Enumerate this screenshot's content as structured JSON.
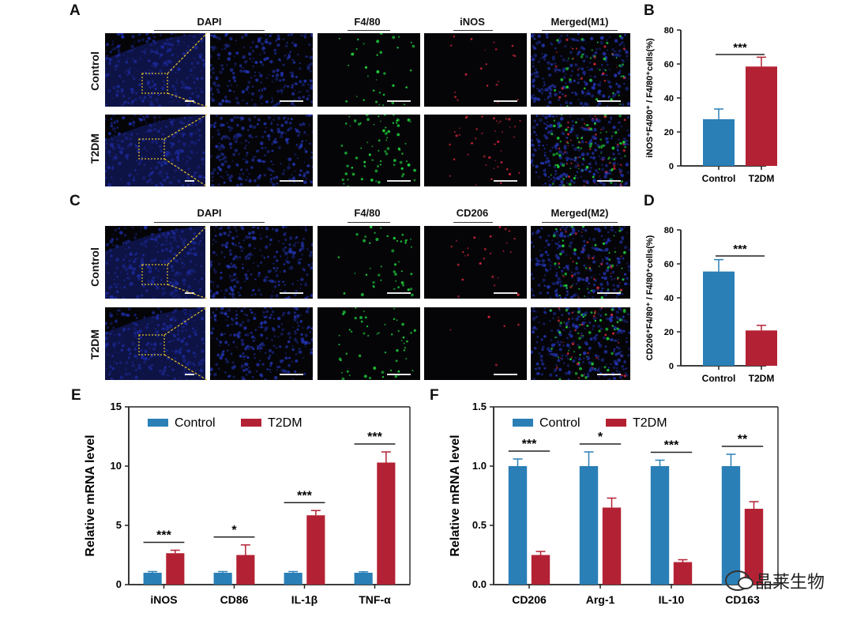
{
  "panels": {
    "A": {
      "letter": "A",
      "columns": [
        "DAPI",
        "F4/80",
        "iNOS",
        "Merged(M1)"
      ],
      "rows": [
        "Control",
        "T2DM"
      ]
    },
    "B": {
      "letter": "B"
    },
    "C": {
      "letter": "C",
      "columns": [
        "DAPI",
        "F4/80",
        "CD206",
        "Merged(M2)"
      ],
      "rows": [
        "Control",
        "T2DM"
      ]
    },
    "D": {
      "letter": "D"
    },
    "E": {
      "letter": "E"
    },
    "F": {
      "letter": "F"
    }
  },
  "colors": {
    "control": "#2a7fb6",
    "t2dm": "#b32234",
    "dapi": "#1a2a9a",
    "f480": "#1fcc3a",
    "red": "#d8283a"
  },
  "watermark": {
    "text": "晶莱生物",
    "icon": "wechat-icon"
  },
  "chart_data": [
    {
      "id": "B",
      "type": "bar",
      "categories": [
        "Control",
        "T2DM"
      ],
      "values": [
        27.5,
        58.5
      ],
      "errors": [
        6,
        5.5
      ],
      "ylabel": "iNOS⁺F4/80⁺ / F4/80⁺cells(%)",
      "ylim": [
        0,
        80
      ],
      "yticks": [
        0,
        20,
        40,
        60,
        80
      ],
      "significance": "***"
    },
    {
      "id": "D",
      "type": "bar",
      "categories": [
        "Control",
        "T2DM"
      ],
      "values": [
        55.5,
        20.8
      ],
      "errors": [
        7,
        3
      ],
      "ylabel": "CD206⁺F4/80⁺ / F4/80⁺cells(%)",
      "ylim": [
        0,
        80
      ],
      "yticks": [
        0,
        20,
        40,
        60,
        80
      ],
      "significance": "***"
    },
    {
      "id": "E",
      "type": "bar",
      "categories": [
        "iNOS",
        "CD86",
        "IL-1β",
        "TNF-α"
      ],
      "series": [
        {
          "name": "Control",
          "values": [
            1.0,
            1.0,
            1.0,
            1.0
          ],
          "errors": [
            0.1,
            0.1,
            0.1,
            0.08
          ]
        },
        {
          "name": "T2DM",
          "values": [
            2.65,
            2.5,
            5.85,
            10.3
          ],
          "errors": [
            0.25,
            0.85,
            0.4,
            0.9
          ]
        }
      ],
      "significance": [
        "***",
        "*",
        "***",
        "***"
      ],
      "ylabel": "Relative mRNA level",
      "ylim": [
        0,
        15
      ],
      "yticks": [
        0,
        5,
        10,
        15
      ],
      "legend": "top-left"
    },
    {
      "id": "F",
      "type": "bar",
      "categories": [
        "CD206",
        "Arg-1",
        "IL-10",
        "CD163"
      ],
      "series": [
        {
          "name": "Control",
          "values": [
            1.0,
            1.0,
            1.0,
            1.0
          ],
          "errors": [
            0.06,
            0.12,
            0.05,
            0.1
          ]
        },
        {
          "name": "T2DM",
          "values": [
            0.25,
            0.65,
            0.19,
            0.64
          ],
          "errors": [
            0.03,
            0.08,
            0.02,
            0.06
          ]
        }
      ],
      "significance": [
        "***",
        "*",
        "***",
        "**"
      ],
      "ylabel": "Relative mRNA level",
      "ylim": [
        0,
        1.5
      ],
      "yticks": [
        "0.0",
        "0.5",
        "1.0",
        "1.5"
      ],
      "legend": "top-left"
    }
  ]
}
